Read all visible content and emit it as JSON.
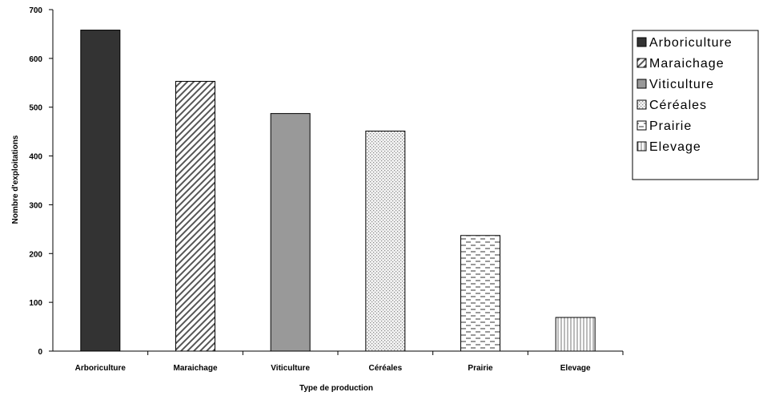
{
  "chart_data": {
    "type": "bar",
    "title": "",
    "xlabel": "Type de production",
    "ylabel": "Nombre d'exploitations",
    "ylim": [
      0,
      700
    ],
    "yticks": [
      0,
      100,
      200,
      300,
      400,
      500,
      600,
      700
    ],
    "grid": false,
    "legend_position": "right",
    "categories": [
      "Arboriculture",
      "Maraichage",
      "Viticulture",
      "Céréales",
      "Prairie",
      "Elevage"
    ],
    "values": [
      658,
      553,
      487,
      451,
      237,
      69
    ],
    "bar_styles": [
      {
        "fill": "#333333",
        "pattern": "solid"
      },
      {
        "fill": "#ffffff",
        "pattern": "diagonal-stripes"
      },
      {
        "fill": "#999999",
        "pattern": "solid"
      },
      {
        "fill": "#e6e6e6",
        "pattern": "dots"
      },
      {
        "fill": "#ffffff",
        "pattern": "horizontal-dashes"
      },
      {
        "fill": "#ffffff",
        "pattern": "vertical-lines"
      }
    ],
    "legend": [
      "Arboriculture",
      "Maraichage",
      "Viticulture",
      "Céréales",
      "Prairie",
      "Elevage"
    ]
  }
}
